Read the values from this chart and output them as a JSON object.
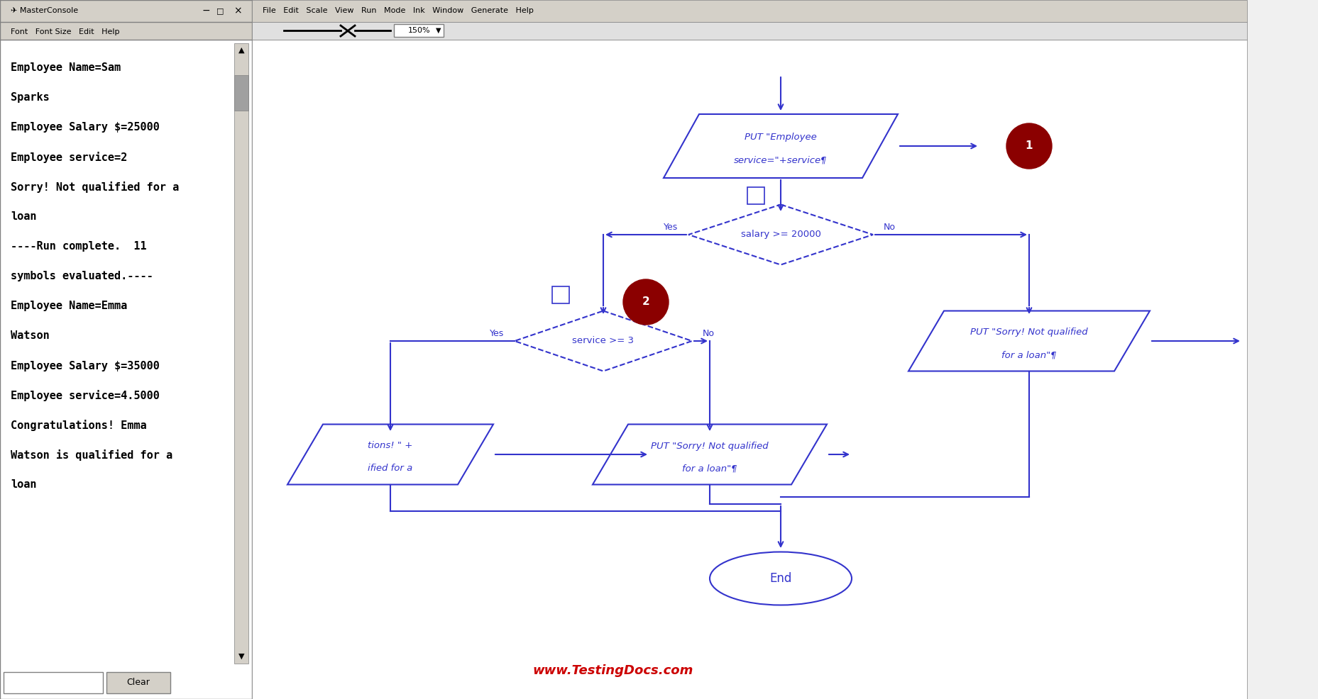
{
  "bg_color": "#f0f0f0",
  "left_panel_bg": "#ffffff",
  "left_panel_text": [
    "Employee Name=Sam",
    "Sparks",
    "Employee Salary $=25000",
    "Employee service=2",
    "Sorry! Not qualified for a",
    "loan",
    "----Run complete.  11",
    "symbols evaluated.----",
    "Employee Name=Emma",
    "Watson",
    "Employee Salary $=35000",
    "Employee service=4.5000",
    "Congratulations! Emma",
    "Watson is qualified for a",
    "loan"
  ],
  "flow_color": "#3333cc",
  "menu_bar_bg": "#d4d0c8",
  "title_bar_bg": "#0000aa",
  "website_text": "www.TestingDocs.com",
  "website_color": "#cc0000",
  "node1_label": "PUT \"Employee\nservice=\"+service¶",
  "node2_label": "salary >= 20000",
  "node3_label": "service >= 3",
  "node4_label": "PUT \"Sorry! Not qualified\nfor a loan\"¶",
  "node5_label": "PUT \"Sorry! Not qualified\nfor a loan\"¶",
  "node6_label": "End",
  "node7_label": "tions! \" +\nified for a",
  "label_yes1": "Yes",
  "label_no1": "No",
  "label_yes2": "Yes",
  "label_no2": "No",
  "circle1_label": "1",
  "circle2_label": "2"
}
